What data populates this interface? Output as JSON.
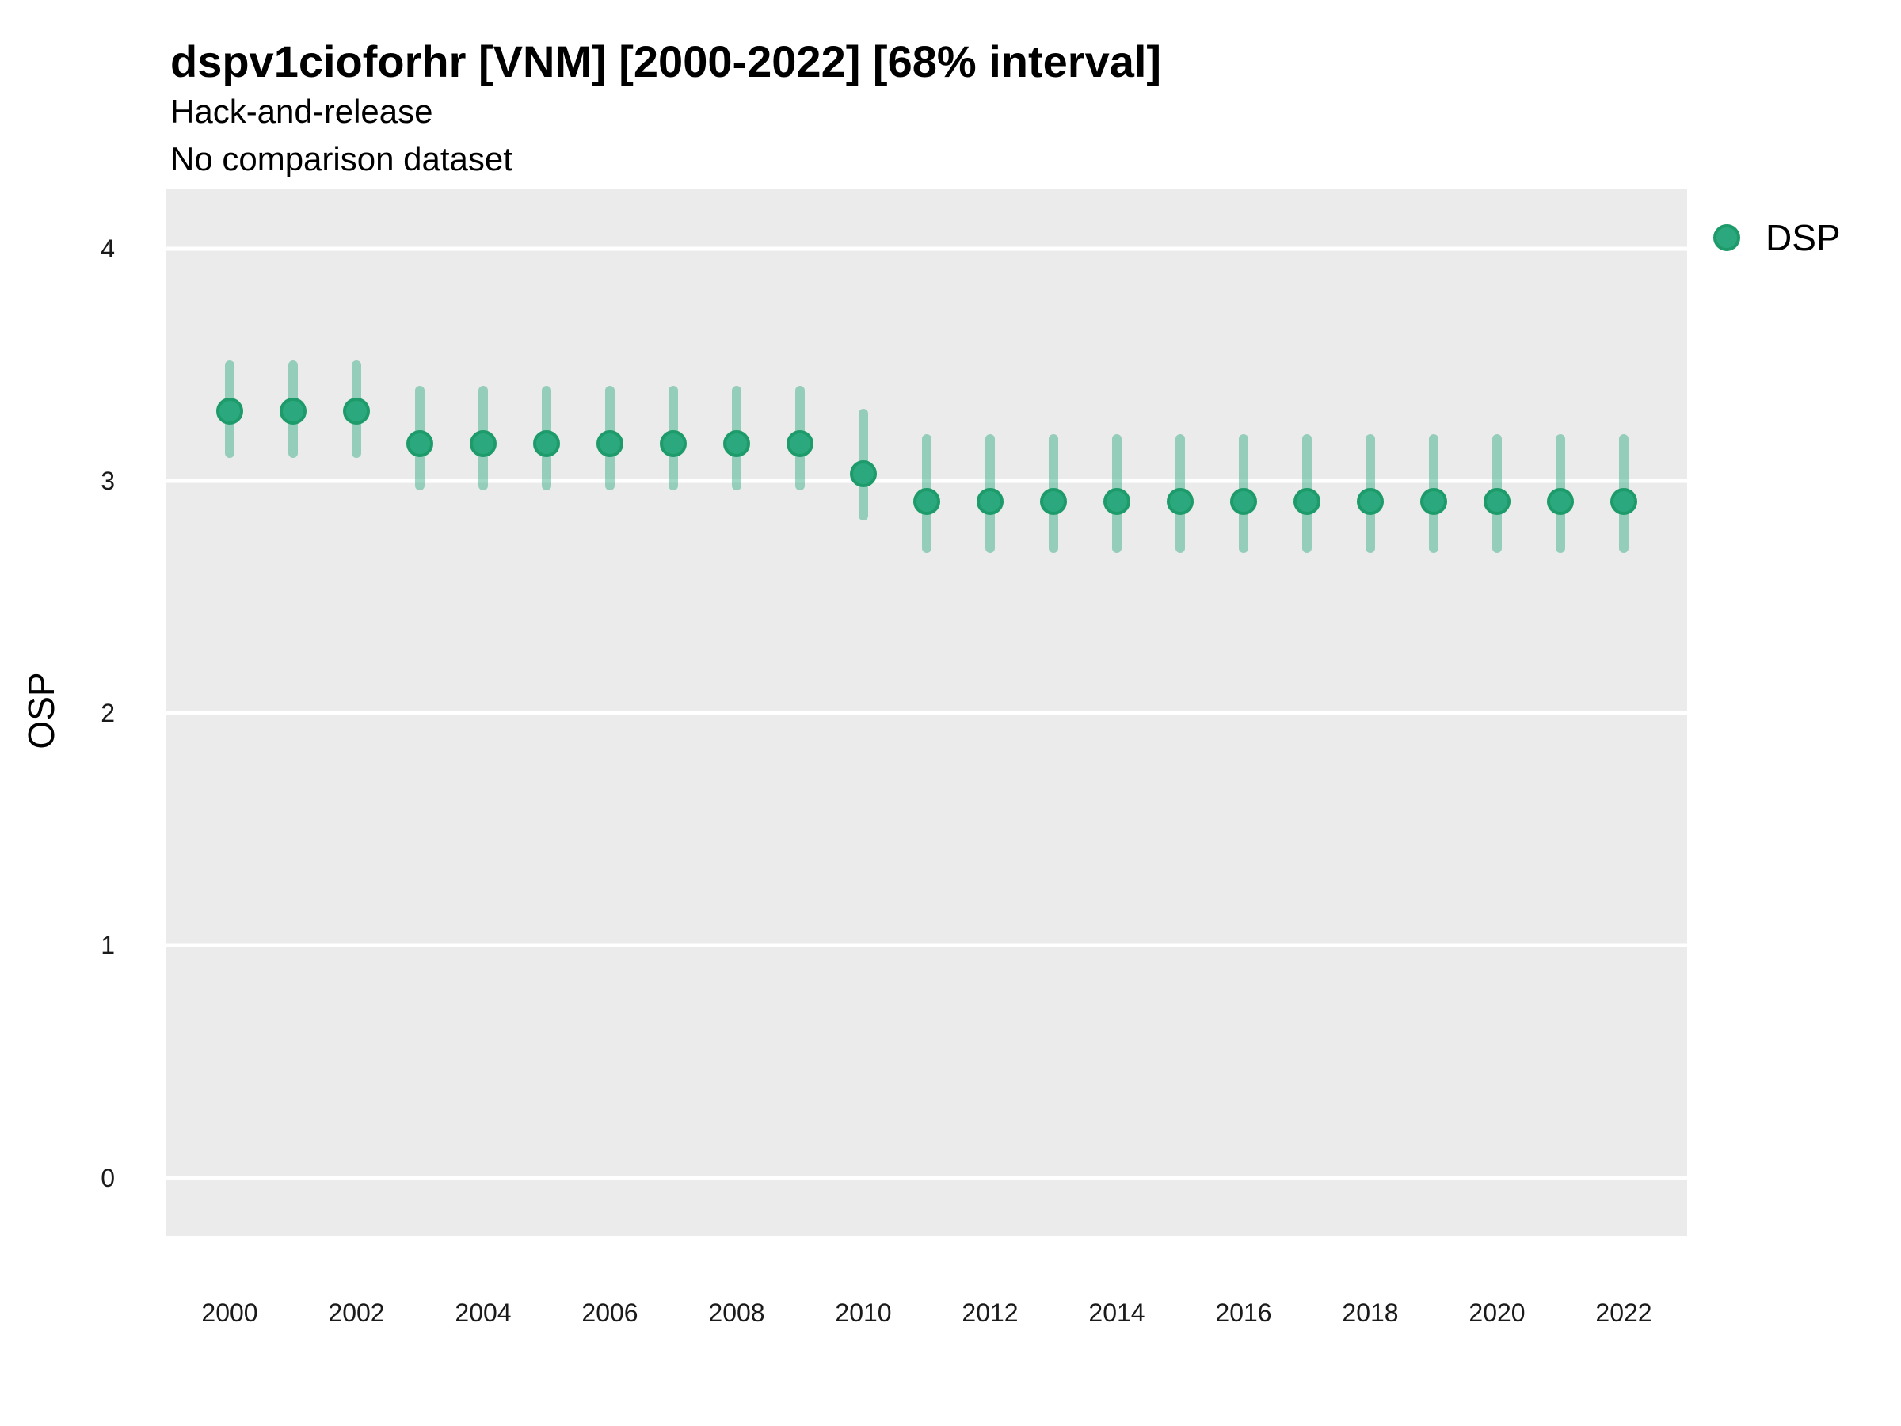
{
  "header": {
    "title": "dspv1cioforhr [VNM] [2000-2022] [68% interval]",
    "subtitle_line1": "Hack-and-release",
    "subtitle_line2": "No comparison dataset"
  },
  "legend": {
    "label": "DSP",
    "marker_color": "#2BA87D",
    "position": "right"
  },
  "colors": {
    "point_fill": "#2BA87D",
    "point_stroke": "#1E9B6B",
    "interval_line": "rgba(43,168,125,0.45)",
    "panel_background": "#EBEBEB",
    "gridline": "#FFFFFF"
  },
  "chart_data": {
    "type": "scatter",
    "subtype": "pointrange",
    "title": "dspv1cioforhr [VNM] [2000-2022] [68% interval]",
    "subtitle": [
      "Hack-and-release",
      "No comparison dataset"
    ],
    "interval_level": "68%",
    "xlabel": "",
    "ylabel": "OSP",
    "xlim": [
      1999,
      2023
    ],
    "ylim": [
      -0.25,
      4.255
    ],
    "x_ticks": [
      2000,
      2002,
      2004,
      2006,
      2008,
      2010,
      2012,
      2014,
      2016,
      2018,
      2020,
      2022
    ],
    "y_ticks": [
      4,
      3,
      2,
      1,
      0
    ],
    "grid": "major-horizontal-only",
    "legend_position": "right",
    "series": [
      {
        "name": "DSP",
        "color": "#2BA87D",
        "x": [
          2000,
          2001,
          2002,
          2003,
          2004,
          2005,
          2006,
          2007,
          2008,
          2009,
          2010,
          2011,
          2012,
          2013,
          2014,
          2015,
          2016,
          2017,
          2018,
          2019,
          2020,
          2021,
          2022
        ],
        "y": [
          3.3,
          3.3,
          3.3,
          3.16,
          3.16,
          3.16,
          3.16,
          3.16,
          3.16,
          3.16,
          3.03,
          2.91,
          2.91,
          2.91,
          2.91,
          2.91,
          2.91,
          2.91,
          2.91,
          2.91,
          2.91,
          2.91,
          2.91
        ],
        "lower": [
          3.1,
          3.1,
          3.1,
          2.96,
          2.96,
          2.96,
          2.96,
          2.96,
          2.96,
          2.96,
          2.83,
          2.69,
          2.69,
          2.69,
          2.69,
          2.69,
          2.69,
          2.69,
          2.69,
          2.69,
          2.69,
          2.69,
          2.69
        ],
        "upper": [
          3.52,
          3.52,
          3.52,
          3.41,
          3.41,
          3.41,
          3.41,
          3.41,
          3.41,
          3.41,
          3.31,
          3.2,
          3.2,
          3.2,
          3.2,
          3.2,
          3.2,
          3.2,
          3.2,
          3.2,
          3.2,
          3.2,
          3.2
        ]
      }
    ]
  }
}
